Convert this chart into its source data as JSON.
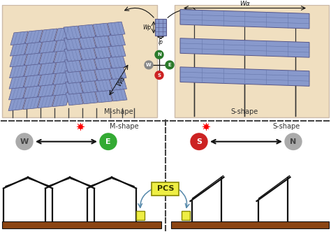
{
  "bg_color": "#f0dfc0",
  "panel_color": "#8899cc",
  "panel_line_color": "#6677aa",
  "panel_edge_color": "#555588",
  "ground_color": "#8B4513",
  "white": "#ffffff",
  "black": "#111111",
  "wa_label": "Wα",
  "wp_label": "Wp",
  "lp_label": "lp",
  "compass_n_color": "#2a7a2a",
  "compass_s_color": "#cc2222",
  "compass_e_color": "#2a7a2a",
  "compass_w_color": "#888888",
  "pcs_fill": "#eeee44",
  "pcs_edge": "#999900",
  "sun_color": "#ff0000",
  "arrow_color": "#222222",
  "dashed_color": "#555555",
  "curve_arrow_color": "#5588aa"
}
